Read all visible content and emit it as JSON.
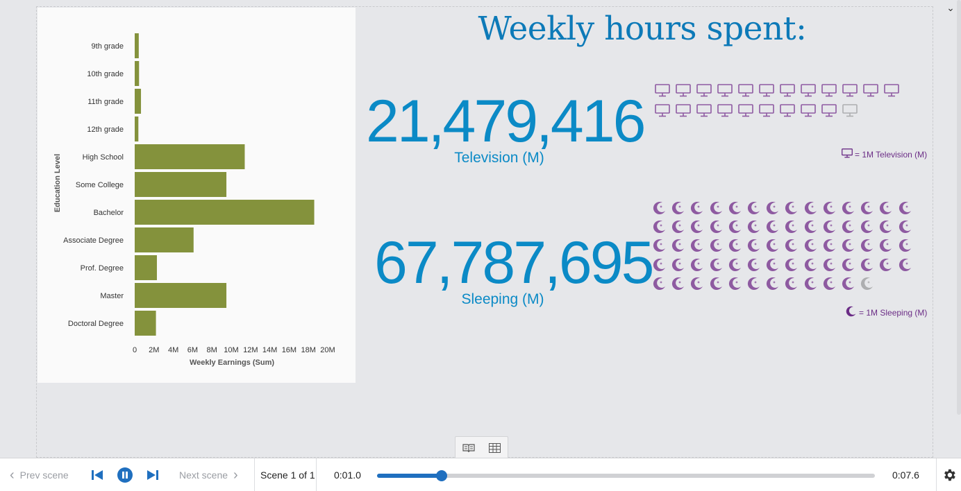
{
  "chart_data": {
    "type": "bar",
    "orientation": "horizontal",
    "ylabel": "Education Level",
    "xlabel": "Weekly Earnings (Sum)",
    "xlim": [
      0,
      20
    ],
    "x_unit": "M",
    "x_ticks": [
      "0",
      "2M",
      "4M",
      "6M",
      "8M",
      "10M",
      "12M",
      "14M",
      "16M",
      "18M",
      "20M"
    ],
    "categories": [
      "9th grade",
      "10th grade",
      "11th grade",
      "12th grade",
      "High School",
      "Some College",
      "Bachelor",
      "Associate Degree",
      "Prof. Degree",
      "Master",
      "Doctoral Degree"
    ],
    "values": [
      0.42,
      0.45,
      0.65,
      0.38,
      11.4,
      9.5,
      18.6,
      6.1,
      2.3,
      9.5,
      2.2
    ],
    "bar_color": "#84923c",
    "grid": false
  },
  "headline": "Weekly hours spent:",
  "metrics": {
    "television": {
      "value": "21,479,416",
      "label": "Television (M)",
      "icon": "monitor-icon",
      "icon_count": 21.48,
      "legend": "= 1M Television (M)"
    },
    "sleeping": {
      "value": "67,787,695",
      "label": "Sleeping (M)",
      "icon": "moon-icon",
      "icon_count": 67.79,
      "legend": "= 1M Sleeping (M)"
    }
  },
  "colors": {
    "accent": "#0b8ac6",
    "icon": "#8e5aa1",
    "legend_text": "#6b2d86",
    "progress": "#1f6fbf"
  },
  "playback": {
    "prev_label": "Prev scene",
    "next_label": "Next scene",
    "scene_label": "Scene 1 of 1",
    "time_current": "0:01.0",
    "time_total": "0:07.6",
    "progress": 0.13
  }
}
